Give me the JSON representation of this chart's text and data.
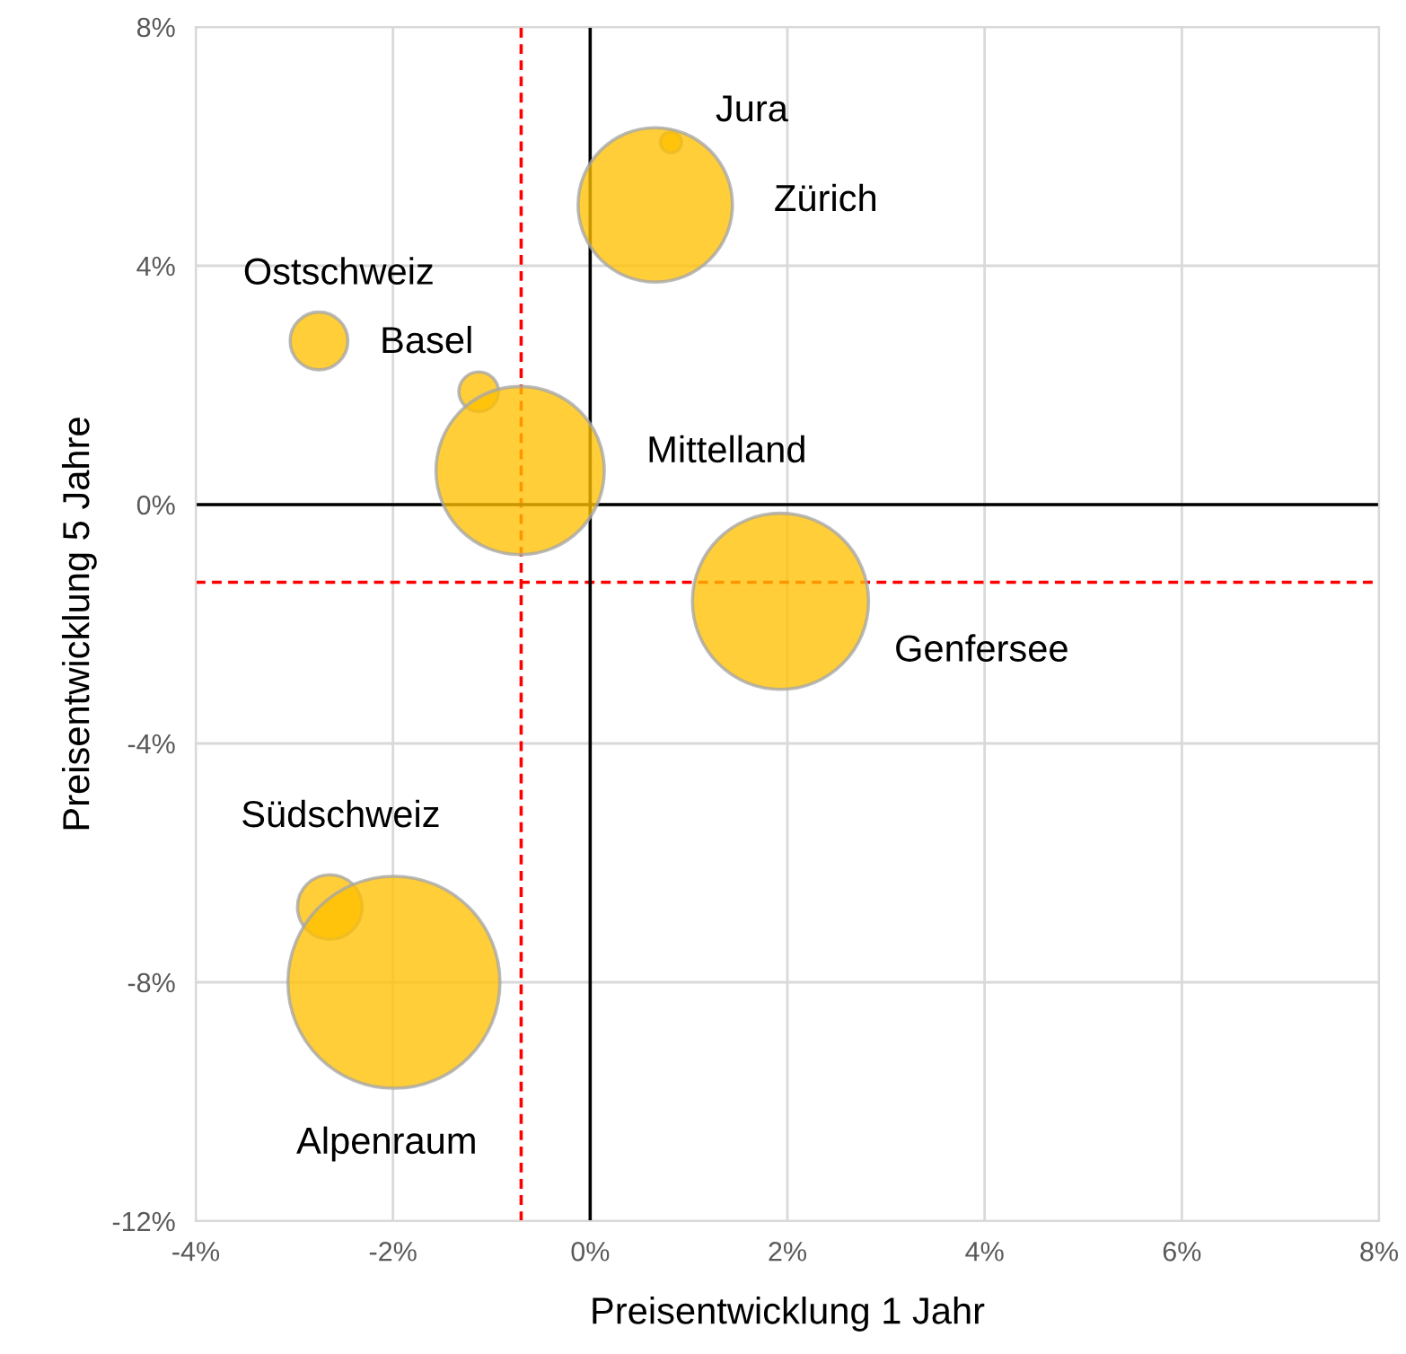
{
  "chart_data": {
    "type": "bubble",
    "xlabel": "Preisentwicklung 1 Jahr",
    "ylabel": "Preisentwicklung 5 Jahre",
    "x": [
      0.82,
      0.66,
      -2.75,
      -1.13,
      -0.71,
      1.93,
      -2.64,
      -1.99
    ],
    "series": [
      {
        "color": "#ffc000",
        "values": [
          6.07,
          5.02,
          2.74,
          1.89,
          0.57,
          -1.62,
          -6.74,
          -8.0
        ],
        "sizes": [
          0.01,
          0.53,
          0.074,
          0.035,
          0.63,
          0.69,
          0.093,
          1
        ]
      }
    ],
    "ref_lines": [
      {
        "axis": "x",
        "value": -0.7,
        "color": "#ff0000",
        "line_style": "dashed"
      },
      {
        "axis": "y",
        "value": -1.3,
        "color": "#ff0000",
        "line_style": "dashed"
      }
    ],
    "annotations": [
      "Jura",
      "Zürich",
      "Ostschweiz",
      "Basel",
      "Mittelland",
      "Genfersee",
      "Südschweiz",
      "Alpenraum"
    ],
    "xlim": [
      -4,
      8
    ],
    "ylim": [
      -12,
      8
    ],
    "xticks": [
      {
        "value": -4,
        "label": "-4%"
      },
      {
        "value": -2,
        "label": "-2%"
      },
      {
        "value": 0,
        "label": "0%"
      },
      {
        "value": 2,
        "label": "2%"
      },
      {
        "value": 4,
        "label": "4%"
      },
      {
        "value": 6,
        "label": "6%"
      },
      {
        "value": 8,
        "label": "8%"
      }
    ],
    "yticks": [
      {
        "value": -12,
        "label": "-12%"
      },
      {
        "value": -8,
        "label": "-8%"
      },
      {
        "value": -4,
        "label": "-4%"
      },
      {
        "value": 0,
        "label": "0%"
      },
      {
        "value": 4,
        "label": "4%"
      },
      {
        "value": 8,
        "label": "8%"
      }
    ],
    "grid": true,
    "legend": false
  }
}
